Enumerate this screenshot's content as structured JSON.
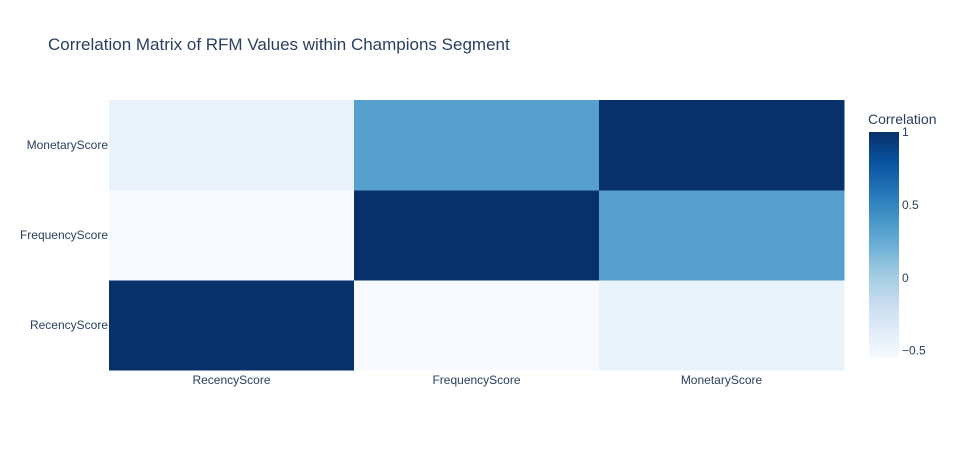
{
  "chart_data": {
    "type": "heatmap",
    "title": "Correlation Matrix of RFM Values within Champions Segment",
    "x": [
      "RecencyScore",
      "FrequencyScore",
      "MonetaryScore"
    ],
    "y": [
      "RecencyScore",
      "FrequencyScore",
      "MonetaryScore"
    ],
    "z": [
      [
        1.0,
        -0.55,
        -0.45
      ],
      [
        -0.55,
        1.0,
        0.32
      ],
      [
        -0.45,
        0.32,
        1.0
      ]
    ],
    "colorbar": {
      "title": "Correlation",
      "range": [
        -0.55,
        1.0
      ],
      "ticks": [
        -0.5,
        0,
        0.5,
        1
      ],
      "tick_labels": [
        "−0.5",
        "0",
        "0.5",
        "1"
      ]
    },
    "colorscale": "Blues",
    "colors": {
      "background": "#ffffff",
      "text": "#2a3f5f"
    }
  }
}
